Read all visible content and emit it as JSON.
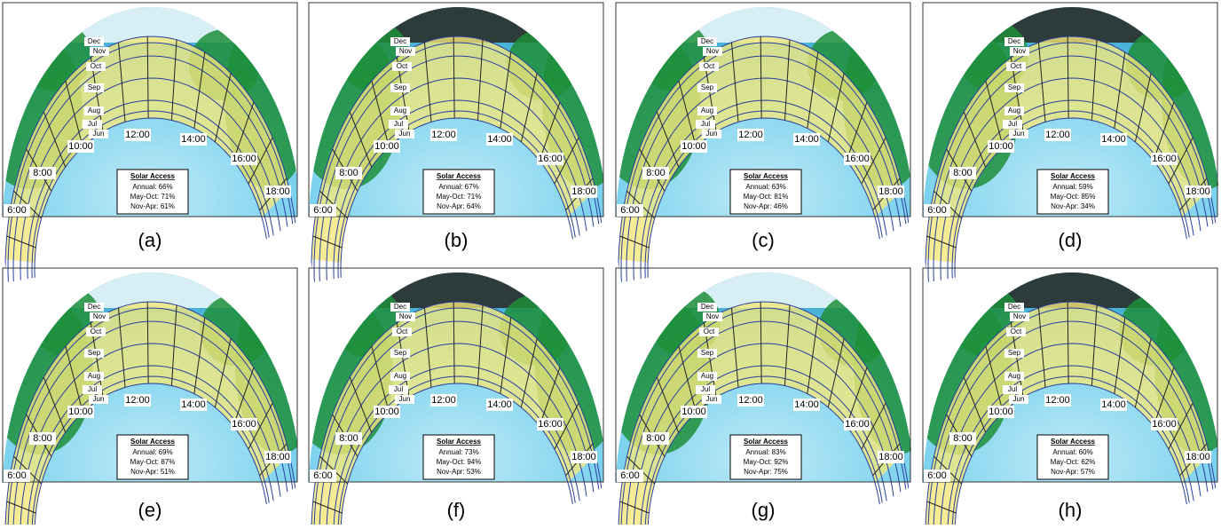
{
  "panels": [
    {
      "label": "(a)",
      "solar_access": {
        "title": "Solar Access",
        "annual": "Annual: 66%",
        "may_oct": "May-Oct: 71%",
        "nov_apr": "Nov-Apr: 61%"
      }
    },
    {
      "label": "(b)",
      "solar_access": {
        "title": "Solar Access",
        "annual": "Annual: 67%",
        "may_oct": "May-Oct: 71%",
        "nov_apr": "Nov-Apr: 64%"
      }
    },
    {
      "label": "(c)",
      "solar_access": {
        "title": "Solar Access",
        "annual": "Annual: 63%",
        "may_oct": "May-Oct: 81%",
        "nov_apr": "Nov-Apr: 46%"
      }
    },
    {
      "label": "(d)",
      "solar_access": {
        "title": "Solar Access",
        "annual": "Annual: 59%",
        "may_oct": "May-Oct: 85%",
        "nov_apr": "Nov-Apr: 34%"
      }
    },
    {
      "label": "(e)",
      "solar_access": {
        "title": "Solar Access",
        "annual": "Annual: 69%",
        "may_oct": "May-Oct: 87%",
        "nov_apr": "Nov-Apr: 51%"
      }
    },
    {
      "label": "(f)",
      "solar_access": {
        "title": "Solar Access",
        "annual": "Annual: 73%",
        "may_oct": "May-Oct: 94%",
        "nov_apr": "Nov-Apr: 53%"
      }
    },
    {
      "label": "(g)",
      "solar_access": {
        "title": "Solar Access",
        "annual": "Annual: 83%",
        "may_oct": "May-Oct: 92%",
        "nov_apr": "Nov-Apr: 75%"
      }
    },
    {
      "label": "(h)",
      "solar_access": {
        "title": "Solar Access",
        "annual": "Annual: 60%",
        "may_oct": "May-Oct: 62%",
        "nov_apr": "Nov-Apr: 57%"
      }
    }
  ],
  "month_labels": [
    "Dec",
    "Nov",
    "Oct",
    "Sep",
    "Aug",
    "Jul",
    "Jun"
  ],
  "hour_labels": [
    "6:00",
    "8:00",
    "10:00",
    "12:00",
    "14:00",
    "16:00",
    "18:00"
  ]
}
